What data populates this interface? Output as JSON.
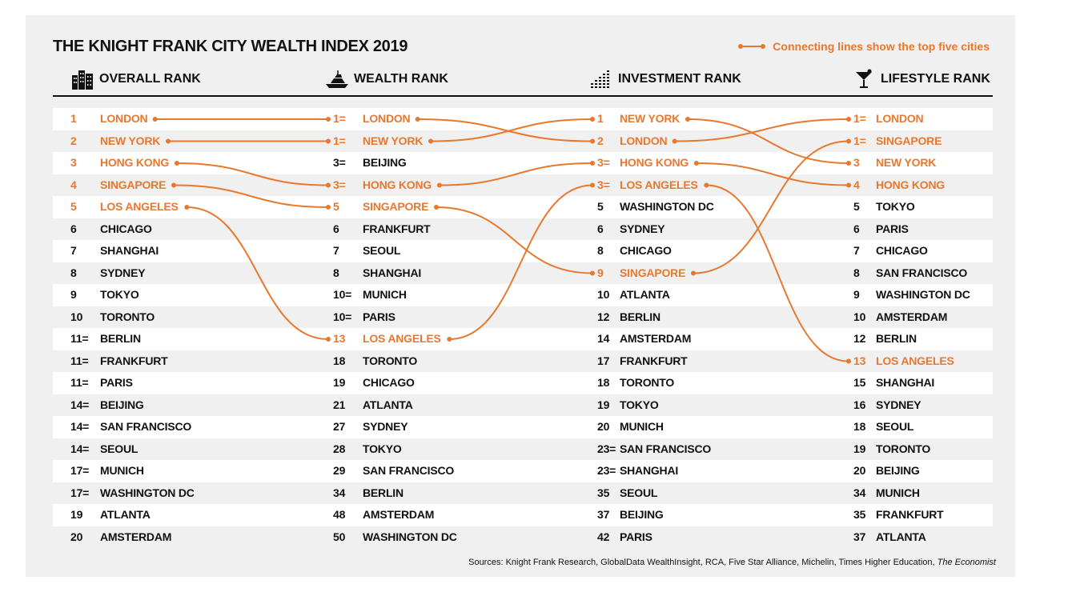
{
  "title": "THE KNIGHT FRANK CITY WEALTH INDEX 2019",
  "legend": "Connecting lines show the top five cities",
  "accent_color": "#e8782e",
  "sources": "Sources: Knight Frank Research, GlobalData WealthInsight, RCA, Five Star Alliance, Michelin, Times Higher Education,",
  "sources_italic": "The Economist",
  "chart_data": {
    "type": "table",
    "columns": [
      {
        "name": "OVERALL RANK",
        "icon": "city-buildings-icon",
        "rows": [
          {
            "rank": "1",
            "city": "LONDON"
          },
          {
            "rank": "2",
            "city": "NEW YORK"
          },
          {
            "rank": "3",
            "city": "HONG KONG"
          },
          {
            "rank": "4",
            "city": "SINGAPORE"
          },
          {
            "rank": "5",
            "city": "LOS ANGELES"
          },
          {
            "rank": "6",
            "city": "CHICAGO"
          },
          {
            "rank": "7",
            "city": "SHANGHAI"
          },
          {
            "rank": "8",
            "city": "SYDNEY"
          },
          {
            "rank": "9",
            "city": "TOKYO"
          },
          {
            "rank": "10",
            "city": "TORONTO"
          },
          {
            "rank": "11=",
            "city": "BERLIN"
          },
          {
            "rank": "11=",
            "city": "FRANKFURT"
          },
          {
            "rank": "11=",
            "city": "PARIS"
          },
          {
            "rank": "14=",
            "city": "BEIJING"
          },
          {
            "rank": "14=",
            "city": "SAN FRANCISCO"
          },
          {
            "rank": "14=",
            "city": "SEOUL"
          },
          {
            "rank": "17=",
            "city": "MUNICH"
          },
          {
            "rank": "17=",
            "city": "WASHINGTON DC"
          },
          {
            "rank": "19",
            "city": "ATLANTA"
          },
          {
            "rank": "20",
            "city": "AMSTERDAM"
          }
        ]
      },
      {
        "name": "WEALTH RANK",
        "icon": "yacht-icon",
        "rows": [
          {
            "rank": "1=",
            "city": "LONDON"
          },
          {
            "rank": "1=",
            "city": "NEW YORK"
          },
          {
            "rank": "3=",
            "city": "BEIJING"
          },
          {
            "rank": "3=",
            "city": "HONG KONG"
          },
          {
            "rank": "5",
            "city": "SINGAPORE"
          },
          {
            "rank": "6",
            "city": "FRANKFURT"
          },
          {
            "rank": "7",
            "city": "SEOUL"
          },
          {
            "rank": "8",
            "city": "SHANGHAI"
          },
          {
            "rank": "10=",
            "city": "MUNICH"
          },
          {
            "rank": "10=",
            "city": "PARIS"
          },
          {
            "rank": "13",
            "city": "LOS ANGELES"
          },
          {
            "rank": "18",
            "city": "TORONTO"
          },
          {
            "rank": "19",
            "city": "CHICAGO"
          },
          {
            "rank": "21",
            "city": "ATLANTA"
          },
          {
            "rank": "27",
            "city": "SYDNEY"
          },
          {
            "rank": "28",
            "city": "TOKYO"
          },
          {
            "rank": "29",
            "city": "SAN FRANCISCO"
          },
          {
            "rank": "34",
            "city": "BERLIN"
          },
          {
            "rank": "48",
            "city": "AMSTERDAM"
          },
          {
            "rank": "50",
            "city": "WASHINGTON DC"
          }
        ]
      },
      {
        "name": "INVESTMENT RANK",
        "icon": "bar-chart-icon",
        "rows": [
          {
            "rank": "1",
            "city": "NEW YORK"
          },
          {
            "rank": "2",
            "city": "LONDON"
          },
          {
            "rank": "3=",
            "city": "HONG KONG"
          },
          {
            "rank": "3=",
            "city": "LOS ANGELES"
          },
          {
            "rank": "5",
            "city": "WASHINGTON DC"
          },
          {
            "rank": "6",
            "city": "SYDNEY"
          },
          {
            "rank": "8",
            "city": "CHICAGO"
          },
          {
            "rank": "9",
            "city": "SINGAPORE"
          },
          {
            "rank": "10",
            "city": "ATLANTA"
          },
          {
            "rank": "12",
            "city": "BERLIN"
          },
          {
            "rank": "14",
            "city": "AMSTERDAM"
          },
          {
            "rank": "17",
            "city": "FRANKFURT"
          },
          {
            "rank": "18",
            "city": "TORONTO"
          },
          {
            "rank": "19",
            "city": "TOKYO"
          },
          {
            "rank": "20",
            "city": "MUNICH"
          },
          {
            "rank": "23=",
            "city": "SAN FRANCISCO"
          },
          {
            "rank": "23=",
            "city": "SHANGHAI"
          },
          {
            "rank": "35",
            "city": "SEOUL"
          },
          {
            "rank": "37",
            "city": "BEIJING"
          },
          {
            "rank": "42",
            "city": "PARIS"
          }
        ]
      },
      {
        "name": "LIFESTYLE RANK",
        "icon": "cocktail-glass-icon",
        "rows": [
          {
            "rank": "1=",
            "city": "LONDON"
          },
          {
            "rank": "1=",
            "city": "SINGAPORE"
          },
          {
            "rank": "3",
            "city": "NEW YORK"
          },
          {
            "rank": "4",
            "city": "HONG KONG"
          },
          {
            "rank": "5",
            "city": "TOKYO"
          },
          {
            "rank": "6",
            "city": "PARIS"
          },
          {
            "rank": "7",
            "city": "CHICAGO"
          },
          {
            "rank": "8",
            "city": "SAN FRANCISCO"
          },
          {
            "rank": "9",
            "city": "WASHINGTON DC"
          },
          {
            "rank": "10",
            "city": "AMSTERDAM"
          },
          {
            "rank": "12",
            "city": "BERLIN"
          },
          {
            "rank": "13",
            "city": "LOS ANGELES"
          },
          {
            "rank": "15",
            "city": "SHANGHAI"
          },
          {
            "rank": "16",
            "city": "SYDNEY"
          },
          {
            "rank": "18",
            "city": "SEOUL"
          },
          {
            "rank": "19",
            "city": "TORONTO"
          },
          {
            "rank": "20",
            "city": "BEIJING"
          },
          {
            "rank": "34",
            "city": "MUNICH"
          },
          {
            "rank": "35",
            "city": "FRANKFURT"
          },
          {
            "rank": "37",
            "city": "ATLANTA"
          }
        ]
      }
    ],
    "highlighted_cities": [
      "LONDON",
      "NEW YORK",
      "HONG KONG",
      "SINGAPORE",
      "LOS ANGELES"
    ]
  }
}
